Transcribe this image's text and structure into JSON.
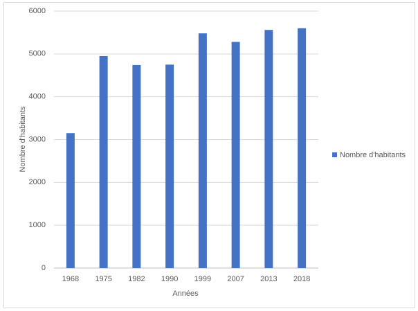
{
  "chart_data": {
    "type": "bar",
    "x_label": "Années",
    "y_label": "Nombre d'habitants",
    "categories": [
      "1968",
      "1975",
      "1982",
      "1990",
      "1999",
      "2007",
      "2013",
      "2018"
    ],
    "series": [
      {
        "name": "Nombre d'habitants",
        "color": "#4472c4",
        "values": [
          3150,
          4950,
          4740,
          4750,
          5480,
          5280,
          5560,
          5600
        ]
      }
    ],
    "ylim": [
      0,
      6000
    ],
    "yticks": [
      0,
      1000,
      2000,
      3000,
      4000,
      5000,
      6000
    ],
    "grid": true,
    "legend": "right"
  }
}
